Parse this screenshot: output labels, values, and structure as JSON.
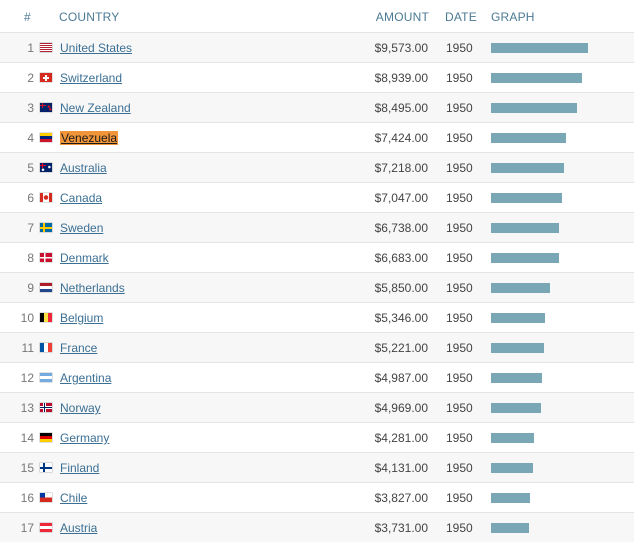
{
  "table": {
    "headers": {
      "rank": "#",
      "country": "COUNTRY",
      "amount": "AMOUNT",
      "date": "DATE",
      "graph": "GRAPH"
    },
    "rows": [
      {
        "rank": "1",
        "country": "United States",
        "amount": "$9,573.00",
        "value": 9573,
        "date": "1950",
        "flag": "flag-us-icon",
        "highlight": false
      },
      {
        "rank": "2",
        "country": "Switzerland",
        "amount": "$8,939.00",
        "value": 8939,
        "date": "1950",
        "flag": "flag-ch-icon",
        "highlight": false
      },
      {
        "rank": "3",
        "country": "New Zealand",
        "amount": "$8,495.00",
        "value": 8495,
        "date": "1950",
        "flag": "flag-nz-icon",
        "highlight": false
      },
      {
        "rank": "4",
        "country": "Venezuela",
        "amount": "$7,424.00",
        "value": 7424,
        "date": "1950",
        "flag": "flag-ve-icon",
        "highlight": true
      },
      {
        "rank": "5",
        "country": "Australia",
        "amount": "$7,218.00",
        "value": 7218,
        "date": "1950",
        "flag": "flag-au-icon",
        "highlight": false
      },
      {
        "rank": "6",
        "country": "Canada",
        "amount": "$7,047.00",
        "value": 7047,
        "date": "1950",
        "flag": "flag-ca-icon",
        "highlight": false
      },
      {
        "rank": "7",
        "country": "Sweden",
        "amount": "$6,738.00",
        "value": 6738,
        "date": "1950",
        "flag": "flag-se-icon",
        "highlight": false
      },
      {
        "rank": "8",
        "country": "Denmark",
        "amount": "$6,683.00",
        "value": 6683,
        "date": "1950",
        "flag": "flag-dk-icon",
        "highlight": false
      },
      {
        "rank": "9",
        "country": "Netherlands",
        "amount": "$5,850.00",
        "value": 5850,
        "date": "1950",
        "flag": "flag-nl-icon",
        "highlight": false
      },
      {
        "rank": "10",
        "country": "Belgium",
        "amount": "$5,346.00",
        "value": 5346,
        "date": "1950",
        "flag": "flag-be-icon",
        "highlight": false
      },
      {
        "rank": "11",
        "country": "France",
        "amount": "$5,221.00",
        "value": 5221,
        "date": "1950",
        "flag": "flag-fr-icon",
        "highlight": false
      },
      {
        "rank": "12",
        "country": "Argentina",
        "amount": "$4,987.00",
        "value": 4987,
        "date": "1950",
        "flag": "flag-ar-icon",
        "highlight": false
      },
      {
        "rank": "13",
        "country": "Norway",
        "amount": "$4,969.00",
        "value": 4969,
        "date": "1950",
        "flag": "flag-no-icon",
        "highlight": false
      },
      {
        "rank": "14",
        "country": "Germany",
        "amount": "$4,281.00",
        "value": 4281,
        "date": "1950",
        "flag": "flag-de-icon",
        "highlight": false
      },
      {
        "rank": "15",
        "country": "Finland",
        "amount": "$4,131.00",
        "value": 4131,
        "date": "1950",
        "flag": "flag-fi-icon",
        "highlight": false
      },
      {
        "rank": "16",
        "country": "Chile",
        "amount": "$3,827.00",
        "value": 3827,
        "date": "1950",
        "flag": "flag-cl-icon",
        "highlight": false
      },
      {
        "rank": "17",
        "country": "Austria",
        "amount": "$3,731.00",
        "value": 3731,
        "date": "1950",
        "flag": "flag-at-icon",
        "highlight": false
      }
    ]
  },
  "colors": {
    "bar": "#7aa7b6",
    "highlight": "#f0953a",
    "link": "#3b6f94",
    "header": "#4b7a94"
  }
}
